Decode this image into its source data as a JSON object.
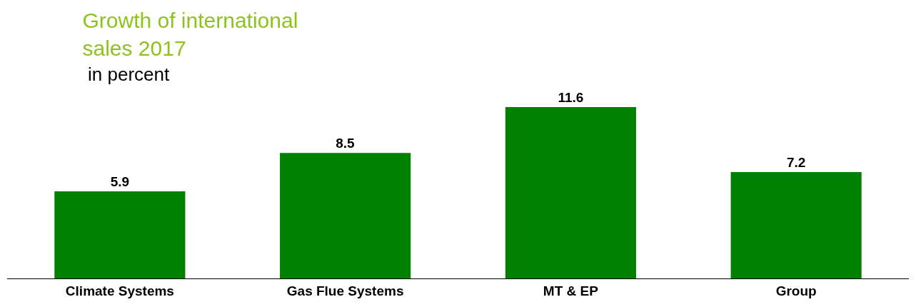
{
  "chart_data": {
    "type": "bar",
    "title": "Growth of international sales 2017",
    "subtitle": "in percent",
    "categories": [
      "Climate Systems",
      "Gas Flue Systems",
      "MT & EP",
      "Group"
    ],
    "values": [
      5.9,
      8.5,
      11.6,
      7.2
    ],
    "color": "#008000",
    "data_labels": true,
    "legend": false
  }
}
